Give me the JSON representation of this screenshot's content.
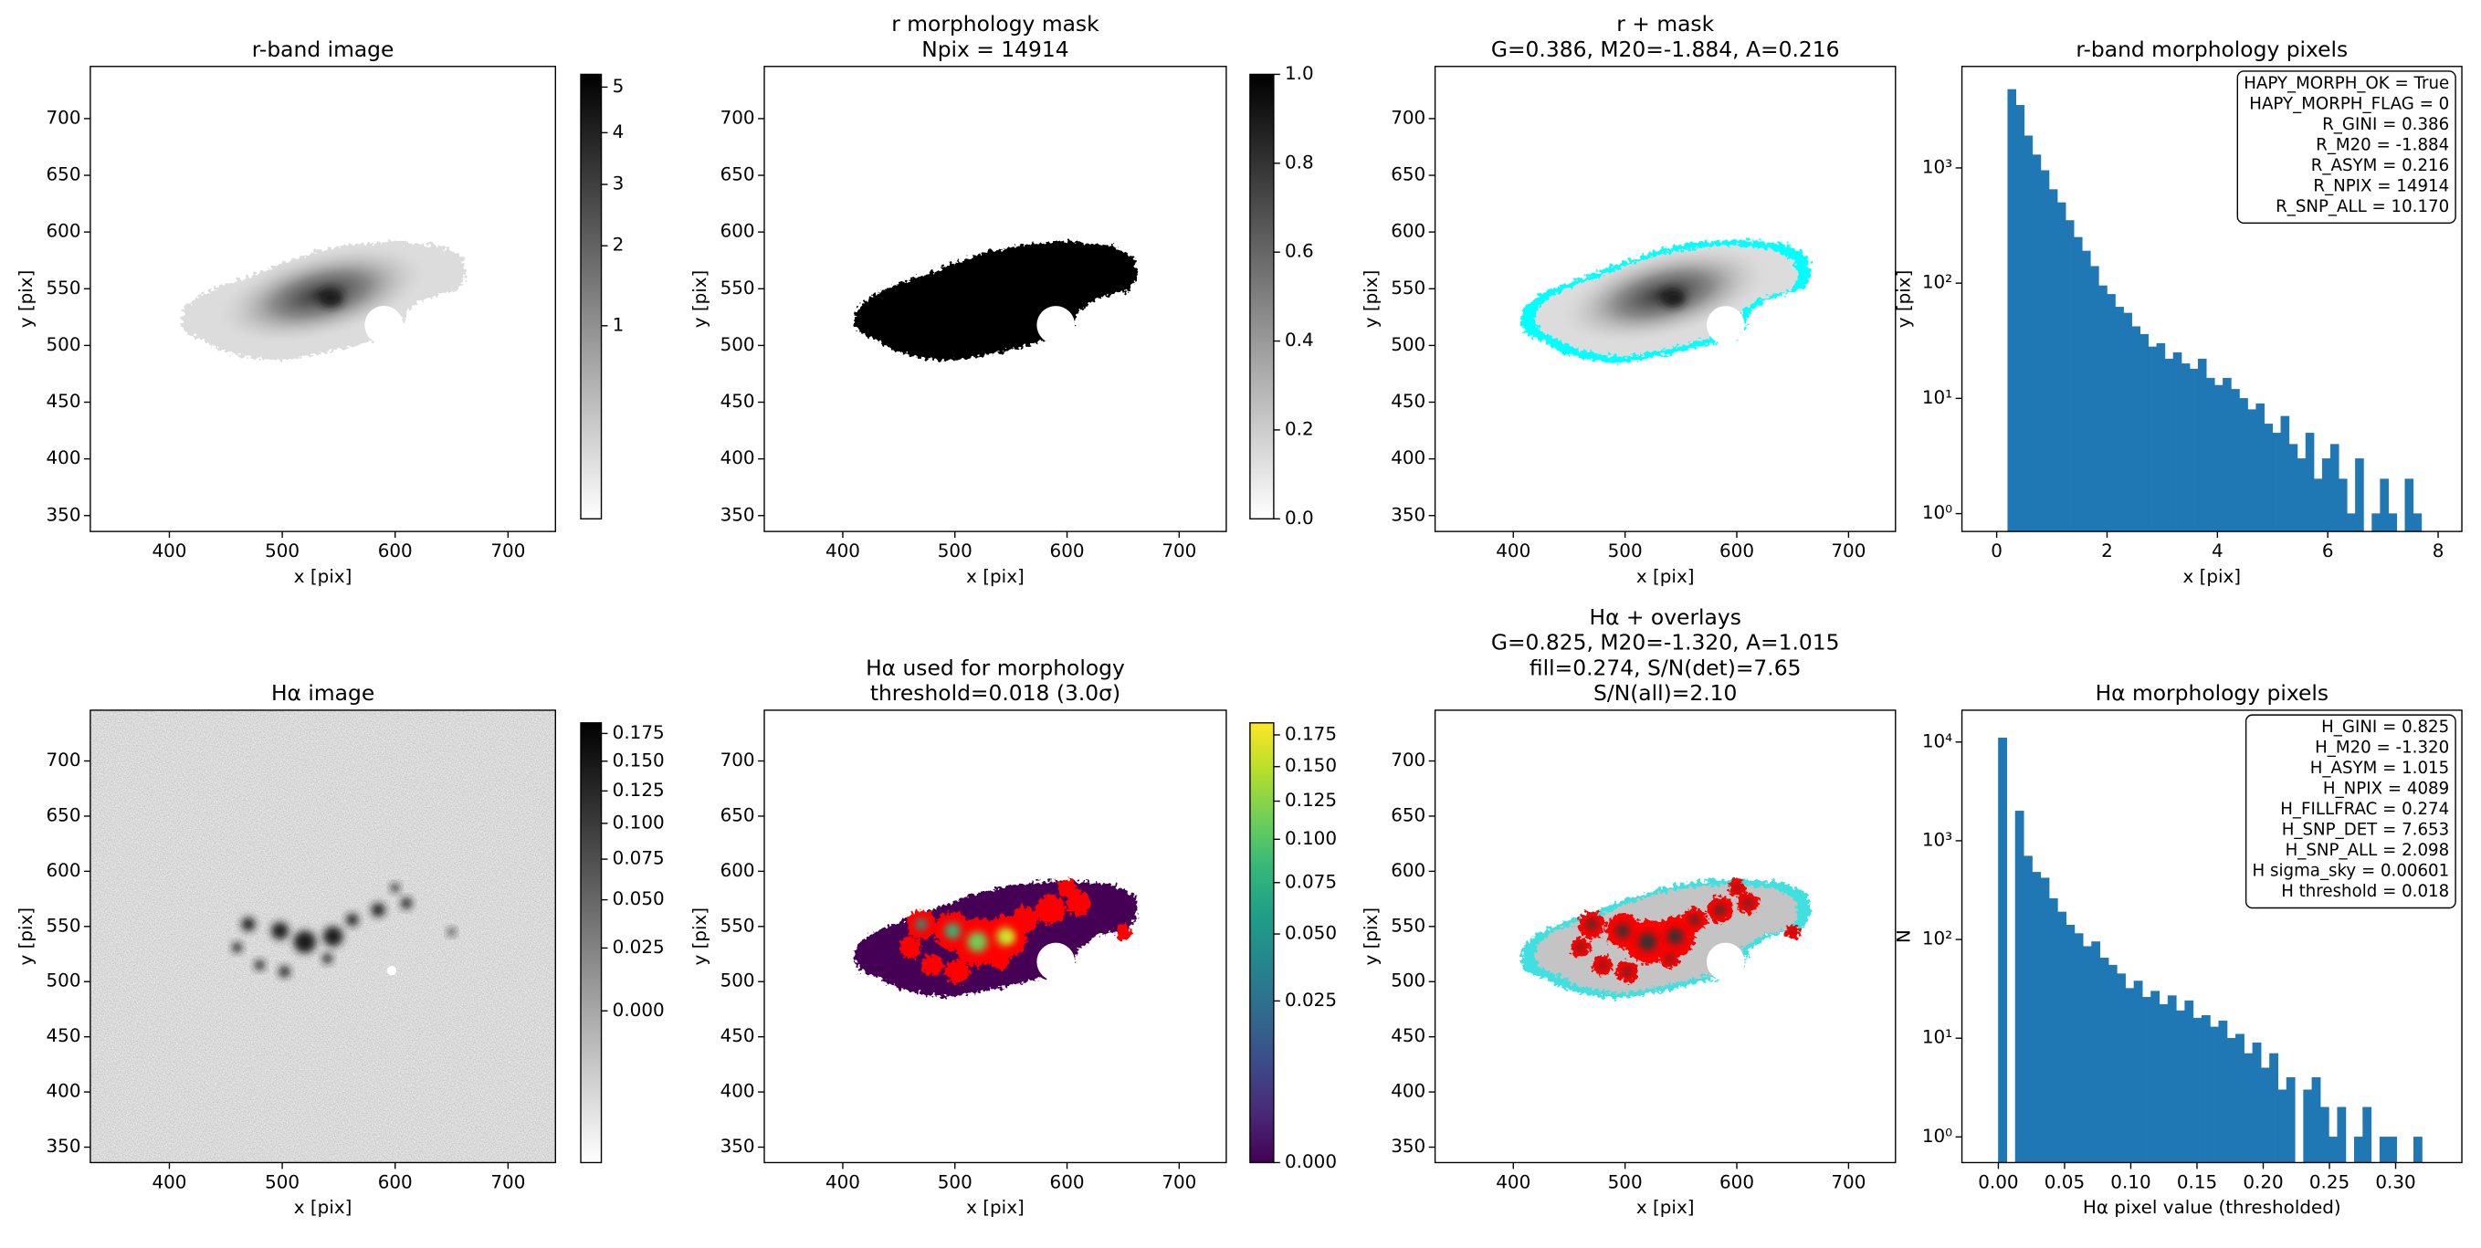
{
  "chart_data": [
    {
      "type": "image",
      "title": [
        "r-band image"
      ],
      "xlabel": "x [pix]",
      "ylabel": "y [pix]",
      "xlim": [
        330,
        742
      ],
      "ylim": [
        336,
        746
      ],
      "xticks": [
        400,
        500,
        600,
        700
      ],
      "yticks": [
        350,
        400,
        450,
        500,
        550,
        600,
        650,
        700
      ],
      "colorbar": {
        "cmap": "gray_r",
        "scale": "sqrt",
        "lim": [
          0,
          5.3
        ],
        "ticks": [
          1,
          2,
          3,
          4,
          5
        ]
      }
    },
    {
      "type": "image",
      "title": [
        "r morphology mask",
        "Npix = 14914"
      ],
      "xlabel": "x [pix]",
      "ylabel": "y [pix]",
      "xlim": [
        330,
        742
      ],
      "ylim": [
        336,
        746
      ],
      "xticks": [
        400,
        500,
        600,
        700
      ],
      "yticks": [
        350,
        400,
        450,
        500,
        550,
        600,
        650,
        700
      ],
      "colorbar": {
        "cmap": "gray_r",
        "scale": "linear",
        "lim": [
          0,
          1
        ],
        "ticks": [
          {
            "value": 0,
            "label": "0.0"
          },
          {
            "value": 0.2,
            "label": "0.2"
          },
          {
            "value": 0.4,
            "label": "0.4"
          },
          {
            "value": 0.6,
            "label": "0.6"
          },
          {
            "value": 0.8,
            "label": "0.8"
          },
          {
            "value": 1,
            "label": "1.0"
          }
        ]
      }
    },
    {
      "type": "image",
      "title": [
        "r + mask",
        "G=0.386, M20=-1.884, A=0.216"
      ],
      "xlabel": "x [pix]",
      "ylabel": "y [pix]",
      "xlim": [
        330,
        742
      ],
      "ylim": [
        336,
        746
      ],
      "xticks": [
        400,
        500,
        600,
        700
      ],
      "yticks": [
        350,
        400,
        450,
        500,
        550,
        600,
        650,
        700
      ],
      "mask_color": "#00ffff"
    },
    {
      "type": "histogram",
      "title": [
        "r-band morphology pixels"
      ],
      "xlabel": "x [pix]",
      "ylabel": "y [pix]",
      "color": "#1f77b4",
      "log_y": true,
      "xlim": [
        -0.63,
        8.43
      ],
      "ylim": [
        0.7,
        7600
      ],
      "xticks": [
        0,
        2,
        4,
        6,
        8
      ],
      "yticks": [
        {
          "value": 1,
          "label": "10⁰"
        },
        {
          "value": 10,
          "label": "10¹"
        },
        {
          "value": 100,
          "label": "10²"
        },
        {
          "value": 1000,
          "label": "10³"
        }
      ],
      "bins": [
        0.2,
        0.35,
        0.5,
        0.65,
        0.8,
        0.95,
        1.1,
        1.25,
        1.4,
        1.55,
        1.7,
        1.85,
        2,
        2.15,
        2.3,
        2.45,
        2.6,
        2.75,
        2.9,
        3.05,
        3.2,
        3.35,
        3.5,
        3.65,
        3.8,
        3.95,
        4.1,
        4.25,
        4.4,
        4.55,
        4.7,
        4.85,
        5,
        5.15,
        5.3,
        5.45,
        5.6,
        5.75,
        5.9,
        6.05,
        6.2,
        6.35,
        6.5,
        6.65,
        6.8,
        6.95,
        7.1,
        7.25,
        7.4,
        7.55,
        7.7
      ],
      "counts": [
        4800,
        3500,
        1900,
        1300,
        950,
        650,
        500,
        350,
        250,
        190,
        140,
        95,
        80,
        62,
        55,
        42,
        36,
        28,
        30,
        22,
        25,
        20,
        18,
        22,
        15,
        13,
        15,
        12,
        10,
        8,
        9,
        6,
        5,
        7,
        4,
        3,
        5,
        2,
        3,
        4,
        2,
        1,
        3,
        0,
        1,
        2,
        1,
        0,
        2,
        1
      ],
      "annotation": [
        "HAPY_MORPH_OK = True",
        "HAPY_MORPH_FLAG = 0",
        "R_GINI = 0.386",
        "R_M20 = -1.884",
        "R_ASYM = 0.216",
        "R_NPIX = 14914",
        "R_SNP_ALL = 10.170"
      ]
    },
    {
      "type": "image",
      "title": [
        "Hα image"
      ],
      "xlabel": "x [pix]",
      "ylabel": "y [pix]",
      "xlim": [
        330,
        742
      ],
      "ylim": [
        336,
        746
      ],
      "xticks": [
        400,
        500,
        600,
        700
      ],
      "yticks": [
        350,
        400,
        450,
        500,
        550,
        600,
        650,
        700
      ],
      "colorbar": {
        "cmap": "gray_r",
        "scale": "sqrt",
        "lim": [
          -0.025,
          0.185
        ],
        "ticks": [
          {
            "value": 0,
            "label": "0.000"
          },
          {
            "value": 0.025,
            "label": "0.025"
          },
          {
            "value": 0.05,
            "label": "0.050"
          },
          {
            "value": 0.075,
            "label": "0.075"
          },
          {
            "value": 0.1,
            "label": "0.100"
          },
          {
            "value": 0.125,
            "label": "0.125"
          },
          {
            "value": 0.15,
            "label": "0.150"
          },
          {
            "value": 0.175,
            "label": "0.175"
          }
        ]
      }
    },
    {
      "type": "image",
      "title": [
        "Hα used for morphology",
        "threshold=0.018 (3.0σ)"
      ],
      "xlabel": "x [pix]",
      "ylabel": "y [pix]",
      "xlim": [
        330,
        742
      ],
      "ylim": [
        336,
        746
      ],
      "xticks": [
        400,
        500,
        600,
        700
      ],
      "yticks": [
        350,
        400,
        450,
        500,
        550,
        600,
        650,
        700
      ],
      "overlay_color": "#ff0000",
      "colorbar": {
        "cmap": "viridis",
        "scale": "sqrt",
        "lim": [
          0,
          0.185
        ],
        "ticks": [
          {
            "value": 0,
            "label": "0.000"
          },
          {
            "value": 0.025,
            "label": "0.025"
          },
          {
            "value": 0.05,
            "label": "0.050"
          },
          {
            "value": 0.075,
            "label": "0.075"
          },
          {
            "value": 0.1,
            "label": "0.100"
          },
          {
            "value": 0.125,
            "label": "0.125"
          },
          {
            "value": 0.15,
            "label": "0.150"
          },
          {
            "value": 0.175,
            "label": "0.175"
          }
        ]
      }
    },
    {
      "type": "image",
      "title": [
        "Hα + overlays",
        "G=0.825, M20=-1.320, A=1.015",
        "fill=0.274, S/N(det)=7.65",
        "S/N(all)=2.10"
      ],
      "xlabel": "x [pix]",
      "ylabel": "y [pix]",
      "xlim": [
        330,
        742
      ],
      "ylim": [
        336,
        746
      ],
      "xticks": [
        400,
        500,
        600,
        700
      ],
      "yticks": [
        350,
        400,
        450,
        500,
        550,
        600,
        650,
        700
      ],
      "mask_color": "#40e0e0",
      "overlay_color": "#ff0000"
    },
    {
      "type": "histogram",
      "title": [
        "Hα morphology pixels"
      ],
      "xlabel": "Hα pixel value (thresholded)",
      "ylabel": "N",
      "color": "#1f77b4",
      "log_y": true,
      "xlim": [
        -0.0275,
        0.35
      ],
      "ylim": [
        0.55,
        21000
      ],
      "xticks": [
        {
          "value": 0,
          "label": "0.00"
        },
        {
          "value": 0.05,
          "label": "0.05"
        },
        {
          "value": 0.1,
          "label": "0.10"
        },
        {
          "value": 0.15,
          "label": "0.15"
        },
        {
          "value": 0.2,
          "label": "0.20"
        },
        {
          "value": 0.25,
          "label": "0.25"
        },
        {
          "value": 0.3,
          "label": "0.30"
        }
      ],
      "yticks": [
        {
          "value": 1,
          "label": "10⁰"
        },
        {
          "value": 10,
          "label": "10¹"
        },
        {
          "value": 100,
          "label": "10²"
        },
        {
          "value": 1000,
          "label": "10³"
        },
        {
          "value": 10000,
          "label": "10⁴"
        }
      ],
      "bins": [
        0,
        0.0064,
        0.0128,
        0.0192,
        0.0256,
        0.032,
        0.0384,
        0.0448,
        0.0512,
        0.0576,
        0.064,
        0.0704,
        0.0768,
        0.0832,
        0.0896,
        0.096,
        0.1024,
        0.1088,
        0.1152,
        0.1216,
        0.128,
        0.1344,
        0.1408,
        0.1472,
        0.1536,
        0.16,
        0.1664,
        0.1728,
        0.1792,
        0.1856,
        0.192,
        0.1984,
        0.2048,
        0.2112,
        0.2176,
        0.224,
        0.2304,
        0.2368,
        0.2432,
        0.2496,
        0.256,
        0.2624,
        0.2688,
        0.2752,
        0.2816,
        0.288,
        0.2944,
        0.3008,
        0.3072,
        0.3136,
        0.32
      ],
      "counts": [
        11000,
        0,
        2000,
        700,
        480,
        420,
        260,
        190,
        140,
        115,
        85,
        95,
        65,
        55,
        45,
        32,
        38,
        26,
        30,
        22,
        27,
        19,
        24,
        16,
        17,
        13,
        15,
        10,
        11,
        7,
        9,
        5,
        7,
        3,
        4,
        0,
        3,
        4,
        2,
        1,
        2,
        0,
        1,
        2,
        0,
        1,
        1,
        0,
        0,
        1
      ],
      "annotation": [
        "H_GINI = 0.825",
        "H_M20 = -1.320",
        "H_ASYM = 1.015",
        "H_NPIX = 4089",
        "H_FILLFRAC = 0.274",
        "H_SNP_DET = 7.653",
        "H_SNP_ALL = 2.098",
        "H sigma_sky = 0.00601",
        "H threshold = 0.018"
      ]
    }
  ]
}
